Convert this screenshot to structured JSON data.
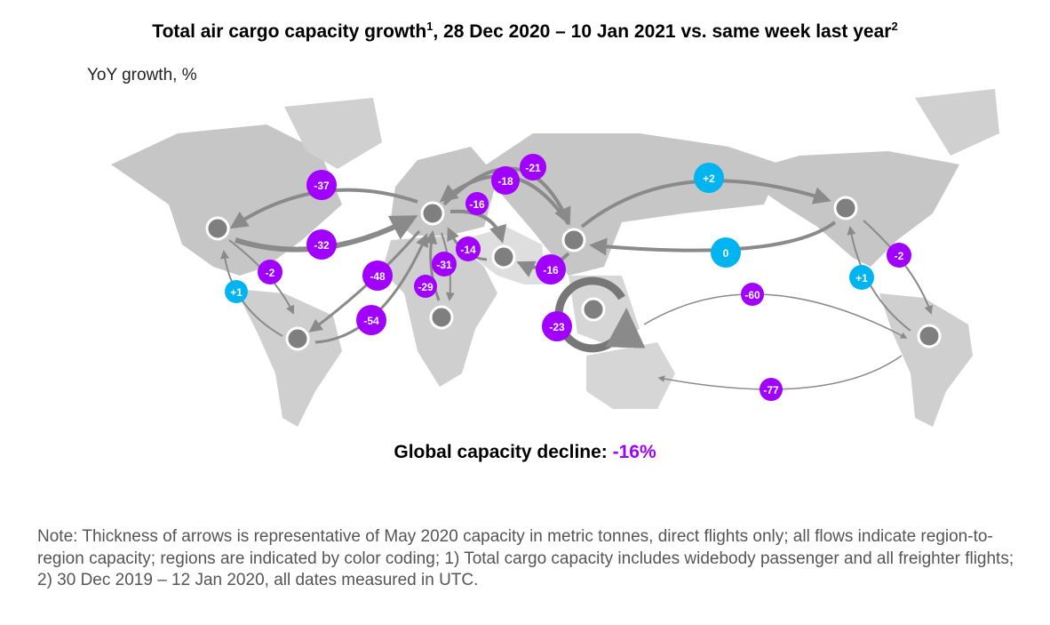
{
  "title": {
    "text": "Total air cargo capacity growth",
    "sup1": "1",
    "mid": ", 28 Dec 2020 – 10 Jan 2021 vs. same week last year",
    "sup2": "2"
  },
  "unit_label": "YoY growth, %",
  "colors": {
    "decline": "#a100ff",
    "growth": "#00b4f0",
    "land": "#c6c6c6",
    "arrow": "#8a8a8a",
    "node": "#7f7f7f"
  },
  "flows": [
    {
      "id": "eu-to-na",
      "value": "-37",
      "type": "decline"
    },
    {
      "id": "na-to-eu",
      "value": "-32",
      "type": "decline"
    },
    {
      "id": "na-to-sa",
      "value": "-2",
      "type": "decline"
    },
    {
      "id": "sa-to-na",
      "value": "+1",
      "type": "growth"
    },
    {
      "id": "eu-to-sa",
      "value": "-48",
      "type": "decline"
    },
    {
      "id": "sa-to-eu",
      "value": "-54",
      "type": "decline"
    },
    {
      "id": "af-to-eu",
      "value": "-31",
      "type": "decline"
    },
    {
      "id": "eu-to-af",
      "value": "-29",
      "type": "decline"
    },
    {
      "id": "me-to-eu",
      "value": "-14",
      "type": "decline"
    },
    {
      "id": "eu-to-me",
      "value": "-16",
      "type": "decline"
    },
    {
      "id": "asia-to-eu",
      "value": "-18",
      "type": "decline"
    },
    {
      "id": "eu-to-asia",
      "value": "-21",
      "type": "decline"
    },
    {
      "id": "asia-to-me",
      "value": "-16",
      "type": "decline"
    },
    {
      "id": "intra-sea",
      "value": "-23",
      "type": "decline"
    },
    {
      "id": "asia-to-na",
      "value": "+2",
      "type": "growth"
    },
    {
      "id": "na-to-asia",
      "value": "0",
      "type": "growth"
    },
    {
      "id": "oceania-to-sa",
      "value": "-60",
      "type": "decline"
    },
    {
      "id": "sa-to-oceania",
      "value": "-77",
      "type": "decline"
    },
    {
      "id": "na-east-to-sa",
      "value": "-2",
      "type": "decline"
    },
    {
      "id": "sa-to-na-east",
      "value": "+1",
      "type": "growth"
    }
  ],
  "global": {
    "label": "Global capacity decline: ",
    "value": "-16%"
  },
  "note": "Note: Thickness of arrows is representative of May 2020 capacity in metric tonnes, direct flights only; all flows indicate region-to-region capacity; regions are indicated by color coding; 1) Total cargo capacity includes widebody passenger and all freighter flights; 2) 30 Dec 2019 – 12 Jan 2020, all dates measured in UTC."
}
